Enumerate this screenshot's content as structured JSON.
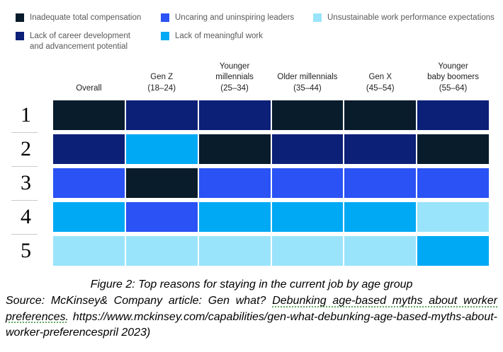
{
  "page": {
    "background": "#ffffff"
  },
  "chart_data": {
    "type": "heatmap",
    "title": "Figure 2: Top reasons for staying in the current job by age group",
    "legend_position": "top",
    "row_label_meaning": "rank of reason (1 = top reason)",
    "rows": [
      "1",
      "2",
      "3",
      "4",
      "5"
    ],
    "columns": [
      {
        "id": "overall",
        "lines": [
          "Overall"
        ]
      },
      {
        "id": "gen-z",
        "lines": [
          "Gen Z",
          "(18–24)"
        ]
      },
      {
        "id": "younger-millennials",
        "lines": [
          "Younger",
          "millennials",
          "(25–34)"
        ]
      },
      {
        "id": "older-millennials",
        "lines": [
          "Older millennials",
          "(35–44)"
        ]
      },
      {
        "id": "gen-x",
        "lines": [
          "Gen X",
          "(45–54)"
        ]
      },
      {
        "id": "younger-baby-boomers",
        "lines": [
          "Younger",
          "baby boomers",
          "(55–64)"
        ]
      }
    ],
    "reasons": [
      {
        "key": "compensation",
        "label": "Inadequate total compensation",
        "color": "#081c2c"
      },
      {
        "key": "career",
        "label": "Lack of career development and advancement potential",
        "color": "#0c2078"
      },
      {
        "key": "leaders",
        "label": "Uncaring and uninspiring leaders",
        "color": "#2a52f5"
      },
      {
        "key": "meaningful",
        "label": "Lack of meaningful work",
        "color": "#00a9f4"
      },
      {
        "key": "unsustainable",
        "label": "Unsustainable work performance expectations",
        "color": "#9ae4fb"
      }
    ],
    "matrix": [
      [
        "compensation",
        "career",
        "career",
        "compensation",
        "compensation",
        "career"
      ],
      [
        "career",
        "meaningful",
        "compensation",
        "career",
        "career",
        "compensation"
      ],
      [
        "leaders",
        "compensation",
        "leaders",
        "leaders",
        "leaders",
        "leaders"
      ],
      [
        "meaningful",
        "leaders",
        "meaningful",
        "meaningful",
        "meaningful",
        "unsustainable"
      ],
      [
        "unsustainable",
        "unsustainable",
        "unsustainable",
        "unsustainable",
        "unsustainable",
        "meaningful"
      ]
    ]
  },
  "caption": {
    "figure_line": "Figure 2: Top reasons for staying in the current job by age group",
    "source_prefix": "Source: McKinsey& Company article: Gen what? ",
    "link_text": "Debunking age-based myths about worker preferences.",
    "source_suffix": " https://www.mckinsey.com/capabilities/gen-what-debunking-age-based-myths-about-worker-preferencespril 2023)",
    "link_underline_color": "#5fa85f"
  }
}
